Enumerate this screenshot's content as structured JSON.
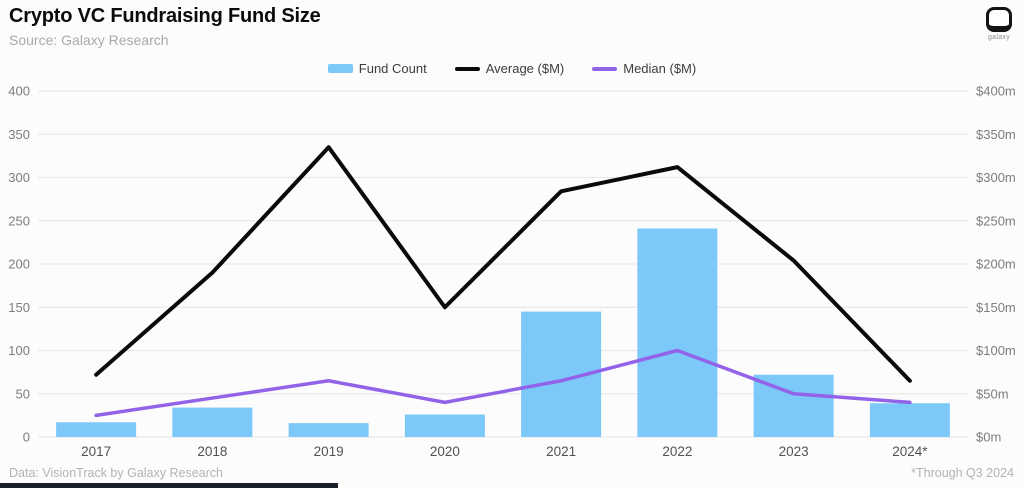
{
  "header": {
    "title": "Crypto VC Fundraising Fund Size",
    "subtitle": "Source: Galaxy Research",
    "logo_text": "galaxy"
  },
  "legend": {
    "items": [
      {
        "label": "Fund Count",
        "type": "bar",
        "color": "#7cc8f8"
      },
      {
        "label": "Average ($M)",
        "type": "line",
        "color": "#0a0a0a"
      },
      {
        "label": "Median ($M)",
        "type": "line",
        "color": "#9263e8"
      }
    ]
  },
  "chart_data": {
    "type": "bar",
    "title": "Crypto VC Fundraising Fund Size",
    "categories": [
      "2017",
      "2018",
      "2019",
      "2020",
      "2021",
      "2022",
      "2023",
      "2024*"
    ],
    "series": [
      {
        "name": "Fund Count",
        "type": "bar",
        "axis": "left",
        "color": "#7cc8f8",
        "values": [
          17,
          34,
          16,
          26,
          145,
          241,
          72,
          39
        ]
      },
      {
        "name": "Average ($M)",
        "type": "line",
        "axis": "right",
        "color": "#0a0a0a",
        "values": [
          72,
          190,
          335,
          150,
          284,
          312,
          204,
          65
        ]
      },
      {
        "name": "Median ($M)",
        "type": "line",
        "axis": "right",
        "color": "#9263e8",
        "values": [
          25,
          45,
          65,
          40,
          65,
          100,
          50,
          40
        ]
      }
    ],
    "left_axis": {
      "min": 0,
      "max": 400,
      "step": 50,
      "labels": [
        "0",
        "50",
        "100",
        "150",
        "200",
        "250",
        "300",
        "350",
        "400"
      ]
    },
    "right_axis": {
      "min": 0,
      "max": 400,
      "step": 50,
      "labels": [
        "$0m",
        "$50m",
        "$100m",
        "$150m",
        "$200m",
        "$250m",
        "$300m",
        "$350m",
        "$400m"
      ]
    },
    "grid": true,
    "legend_position": "top-center"
  },
  "footer": {
    "left": "Data: VisionTrack by Galaxy Research",
    "right": "*Through Q3 2024"
  },
  "colors": {
    "bar": "#7cc8f8",
    "average_line": "#0a0a0a",
    "median_line": "#9263e8",
    "grid": "#e9e9e9",
    "background": "#fcfcfc"
  }
}
